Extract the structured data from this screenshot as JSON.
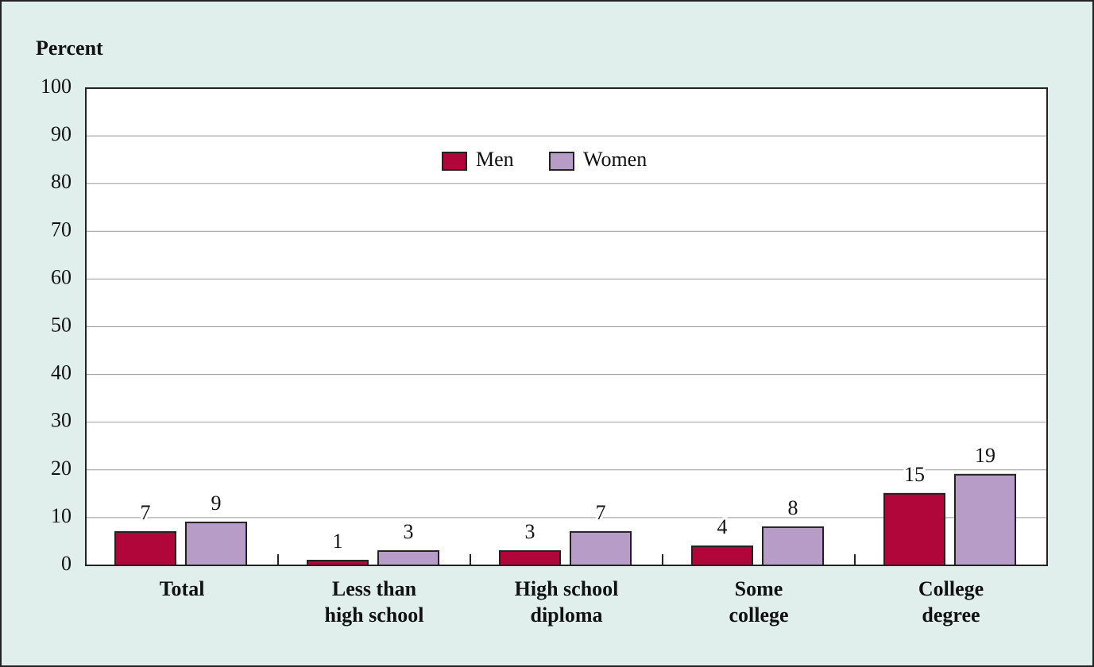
{
  "chart_data": {
    "type": "bar",
    "y_label": "Percent",
    "categories": [
      "Total",
      "Less than\nhigh school",
      "High school\ndiploma",
      "Some\ncollege",
      "College\ndegree"
    ],
    "series": [
      {
        "name": "Men",
        "color": "#b0063a",
        "values": [
          7,
          1,
          3,
          4,
          15
        ]
      },
      {
        "name": "Women",
        "color": "#b89cc8",
        "values": [
          9,
          3,
          7,
          8,
          19
        ]
      }
    ],
    "ylim": [
      0,
      100
    ],
    "yticks": [
      0,
      10,
      20,
      30,
      40,
      50,
      60,
      70,
      80,
      90,
      100
    ],
    "grid": true,
    "legend": "top-center"
  }
}
